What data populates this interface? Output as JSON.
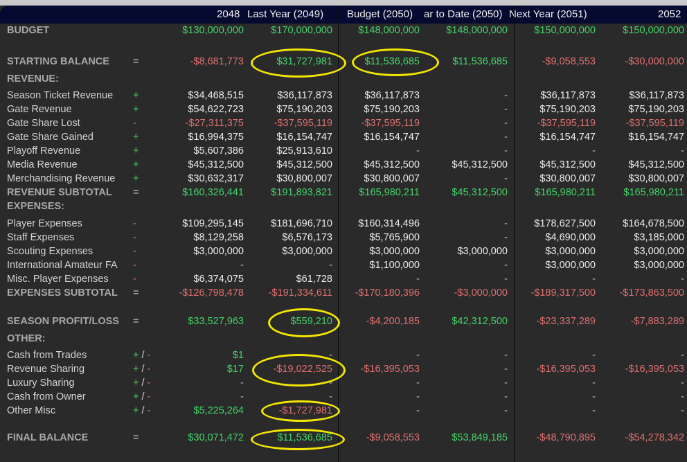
{
  "columns": [
    "2048",
    "Last Year (2049)",
    "Budget (2050)",
    "ar to Date (2050)",
    "Next Year (2051)",
    "2052"
  ],
  "colors": {
    "positive": "#45d46a",
    "negative": "#e06f6f",
    "header_bg": "#050a30",
    "highlight": "#f2e600"
  },
  "rows": [
    {
      "label": "BUDGET",
      "sign": "",
      "kind": "head",
      "values": [
        "$130,000,000",
        "$170,000,000",
        "$148,000,000",
        "$148,000,000",
        "$150,000,000",
        "$150,000,000"
      ]
    },
    {
      "label": "STARTING BALANCE",
      "sign": "=",
      "kind": "head",
      "values": [
        "-$8,681,773",
        "$31,727,981",
        "$11,536,685",
        "$11,536,685",
        "-$9,058,553",
        "-$30,000,000"
      ]
    },
    {
      "label": "REVENUE:",
      "sign": "",
      "kind": "section",
      "values": []
    },
    {
      "label": "Season Ticket Revenue",
      "sign": "+",
      "kind": "item",
      "values": [
        "$34,468,515",
        "$36,117,873",
        "$36,117,873",
        "-",
        "$36,117,873",
        "$36,117,873"
      ]
    },
    {
      "label": "Gate Revenue",
      "sign": "+",
      "kind": "item",
      "values": [
        "$54,622,723",
        "$75,190,203",
        "$75,190,203",
        "-",
        "$75,190,203",
        "$75,190,203"
      ]
    },
    {
      "label": "Gate Share Lost",
      "sign": "-",
      "kind": "item",
      "values": [
        "-$27,311,375",
        "-$37,595,119",
        "-$37,595,119",
        "-",
        "-$37,595,119",
        "-$37,595,119"
      ]
    },
    {
      "label": "Gate Share Gained",
      "sign": "+",
      "kind": "item",
      "values": [
        "$16,994,375",
        "$16,154,747",
        "$16,154,747",
        "-",
        "$16,154,747",
        "$16,154,747"
      ]
    },
    {
      "label": "Playoff Revenue",
      "sign": "+",
      "kind": "item",
      "values": [
        "$5,607,386",
        "$25,913,610",
        "-",
        "-",
        "-",
        "-"
      ]
    },
    {
      "label": "Media Revenue",
      "sign": "+",
      "kind": "item",
      "values": [
        "$45,312,500",
        "$45,312,500",
        "$45,312,500",
        "$45,312,500",
        "$45,312,500",
        "$45,312,500"
      ]
    },
    {
      "label": "Merchandising Revenue",
      "sign": "+",
      "kind": "item",
      "values": [
        "$30,632,317",
        "$30,800,007",
        "$30,800,007",
        "-",
        "$30,800,007",
        "$30,800,007"
      ]
    },
    {
      "label": "REVENUE SUBTOTAL",
      "sign": "=",
      "kind": "total",
      "values": [
        "$160,326,441",
        "$191,893,821",
        "$165,980,211",
        "$45,312,500",
        "$165,980,211",
        "$165,980,211"
      ]
    },
    {
      "label": "EXPENSES:",
      "sign": "",
      "kind": "section",
      "values": []
    },
    {
      "label": "Player Expenses",
      "sign": "-",
      "kind": "item",
      "values": [
        "$109,295,145",
        "$181,696,710",
        "$160,314,496",
        "-",
        "$178,627,500",
        "$164,678,500"
      ]
    },
    {
      "label": "Staff Expenses",
      "sign": "-",
      "kind": "item",
      "values": [
        "$8,129,258",
        "$6,576,173",
        "$5,765,900",
        "-",
        "$4,690,000",
        "$3,185,000"
      ]
    },
    {
      "label": "Scouting Expenses",
      "sign": "-",
      "kind": "item",
      "values": [
        "$3,000,000",
        "$3,000,000",
        "$3,000,000",
        "$3,000,000",
        "$3,000,000",
        "$3,000,000"
      ]
    },
    {
      "label": "International Amateur FA",
      "sign": "-",
      "kind": "item",
      "values": [
        "-",
        "-",
        "$1,100,000",
        "-",
        "$3,000,000",
        "$3,000,000"
      ]
    },
    {
      "label": "Misc. Player Expenses",
      "sign": "-",
      "kind": "item",
      "values": [
        "$6,374,075",
        "$61,728",
        "-",
        "-",
        "-",
        "-"
      ]
    },
    {
      "label": "EXPENSES SUBTOTAL",
      "sign": "=",
      "kind": "total",
      "values": [
        "-$126,798,478",
        "-$191,334,611",
        "-$170,180,396",
        "-$3,000,000",
        "-$189,317,500",
        "-$173,863,500"
      ]
    },
    {
      "label": "SEASON PROFIT/LOSS",
      "sign": "=",
      "kind": "head",
      "values": [
        "$33,527,963",
        "$559,210",
        "-$4,200,185",
        "$42,312,500",
        "-$23,337,289",
        "-$7,883,289"
      ]
    },
    {
      "label": "OTHER:",
      "sign": "",
      "kind": "section",
      "values": []
    },
    {
      "label": "Cash from Trades",
      "sign": "+/-",
      "kind": "other",
      "values": [
        "$1",
        "-",
        "-",
        "-",
        "-",
        "-"
      ]
    },
    {
      "label": "Revenue Sharing",
      "sign": "+/-",
      "kind": "other",
      "values": [
        "$17",
        "-$19,022,525",
        "-$16,395,053",
        "-",
        "-$16,395,053",
        "-$16,395,053"
      ]
    },
    {
      "label": "Luxury Sharing",
      "sign": "+/-",
      "kind": "other",
      "values": [
        "-",
        "-",
        "-",
        "-",
        "-",
        "-"
      ]
    },
    {
      "label": "Cash from Owner",
      "sign": "+/-",
      "kind": "other",
      "values": [
        "-",
        "-",
        "-",
        "-",
        "-",
        "-"
      ]
    },
    {
      "label": "Other Misc",
      "sign": "+/-",
      "kind": "other",
      "values": [
        "$5,225,264",
        "-$1,727,981",
        "-",
        "-",
        "-",
        "-"
      ]
    },
    {
      "label": "FINAL BALANCE",
      "sign": "=",
      "kind": "head",
      "values": [
        "$30,071,472",
        "$11,536,685",
        "-$9,058,553",
        "$53,849,185",
        "-$48,790,895",
        "-$54,278,342"
      ]
    }
  ]
}
